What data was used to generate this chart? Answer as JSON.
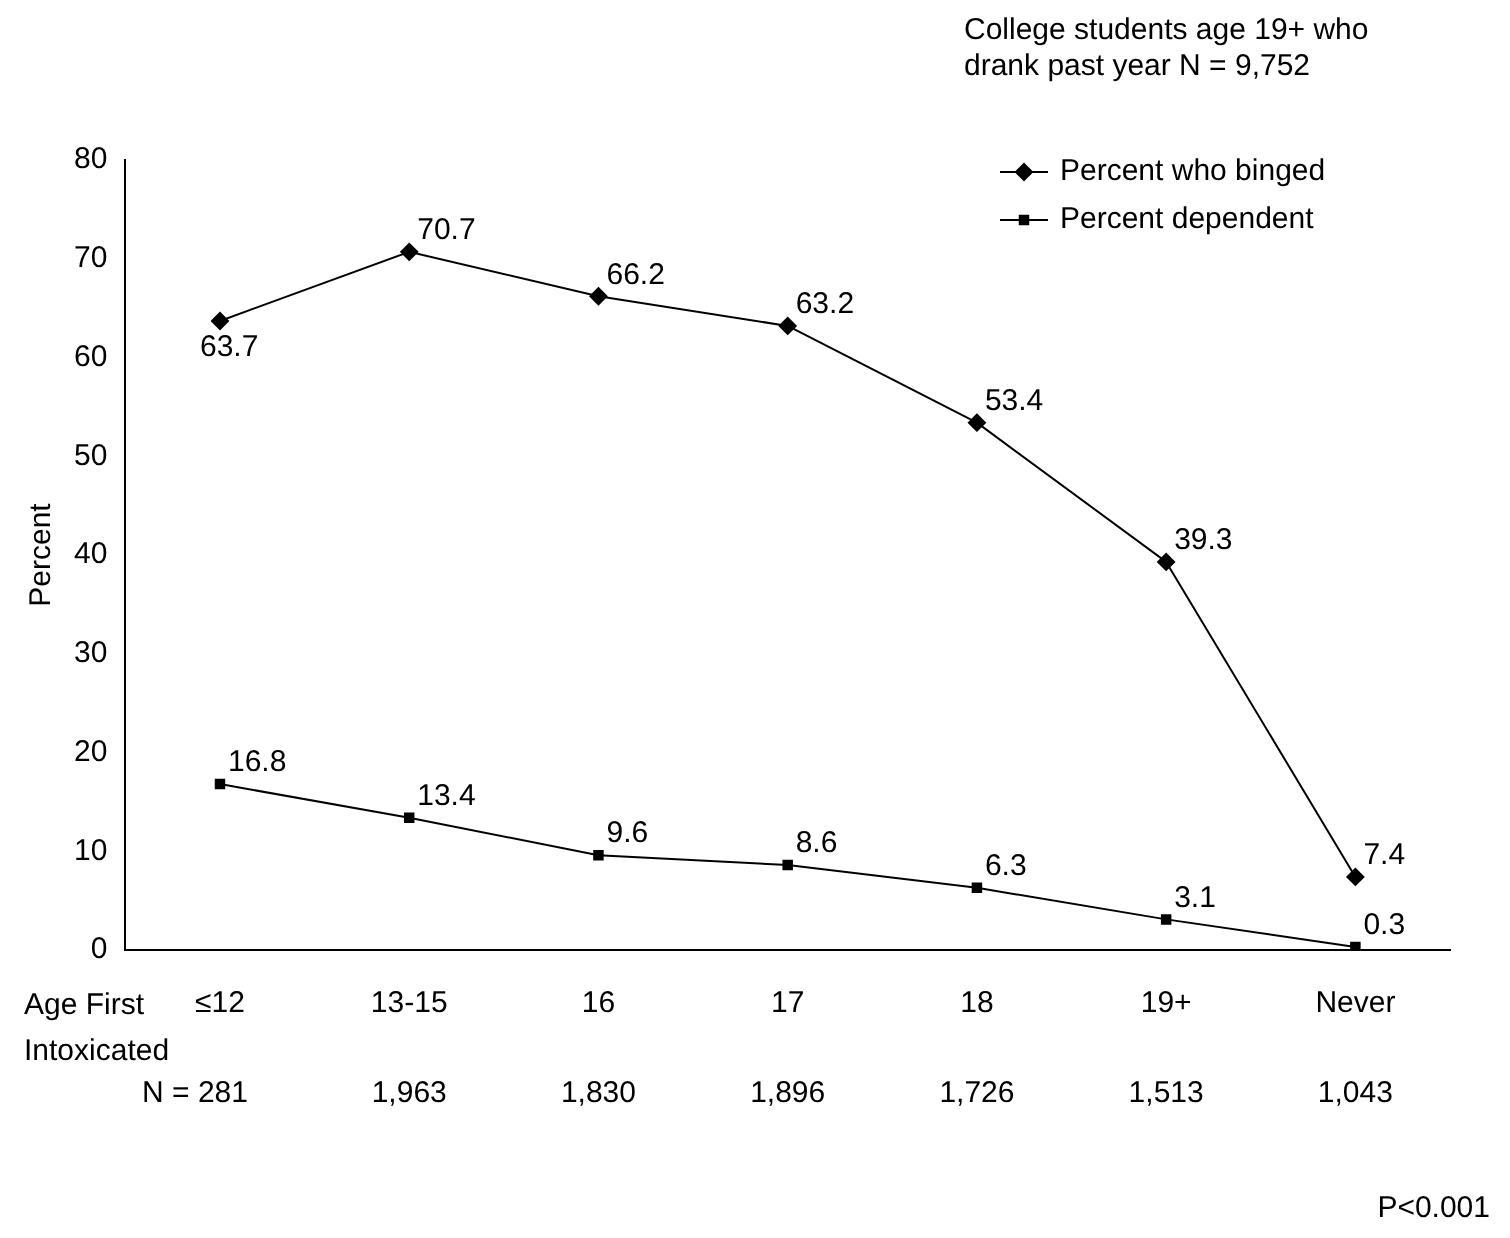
{
  "chart_data": {
    "type": "line",
    "title": "College students age 19+ who drank past year N = 9,752",
    "ylabel": "Percent",
    "xlabel": "Age First Intoxicated",
    "categories": [
      "≤12",
      "13-15",
      "16",
      "17",
      "18",
      "19+",
      "Never"
    ],
    "series": [
      {
        "name": "Percent who binged",
        "color": "#000000",
        "marker": "diamond",
        "values": [
          63.7,
          70.7,
          66.2,
          63.2,
          53.4,
          39.3,
          7.4
        ]
      },
      {
        "name": "Percent dependent",
        "color": "#000000",
        "marker": "square",
        "values": [
          16.8,
          13.4,
          9.6,
          8.6,
          6.3,
          3.1,
          0.3
        ]
      }
    ],
    "ylim": [
      0,
      80
    ],
    "yticks": [
      0,
      10,
      20,
      30,
      40,
      50,
      60,
      70,
      80
    ],
    "grid": false,
    "legend": "top right",
    "data_labels": true,
    "line_style": "solid",
    "annotations": [
      "N = 281",
      "1,963",
      "1,830",
      "1,896",
      "1,726",
      "1,513",
      "1,043",
      "P<0.001"
    ]
  }
}
